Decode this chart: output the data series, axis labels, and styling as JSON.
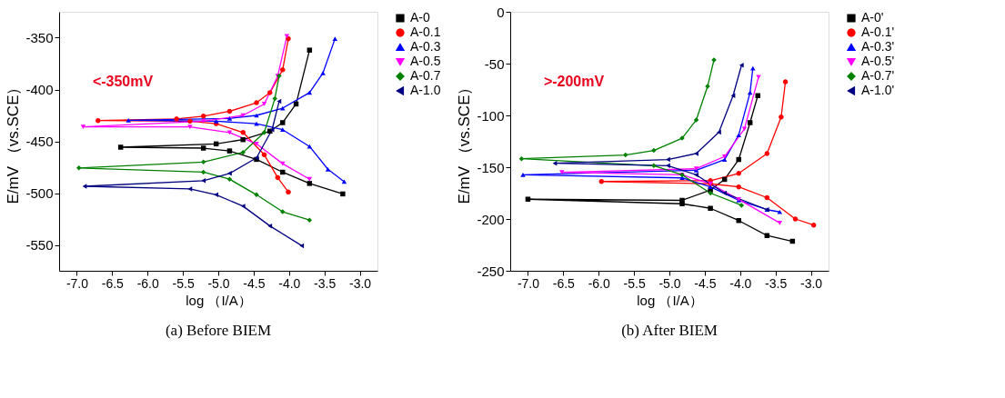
{
  "chart_data": [
    {
      "type": "line",
      "title": "(a) Before BIEM",
      "xlabel": "log （I/A）",
      "ylabel": "E/mV （vs.SCE）",
      "annotations": [
        "<-350mV"
      ],
      "xlim": [
        -7.25,
        -2.75
      ],
      "ylim": [
        -575,
        -325
      ],
      "xticks": [
        {
          "value": -7,
          "label": "-7.0"
        },
        {
          "value": -6.5,
          "label": "-6.5"
        },
        {
          "value": -6,
          "label": "-6.0"
        },
        {
          "value": -5.5,
          "label": "-5.5"
        },
        {
          "value": -5,
          "label": "-5.0"
        },
        {
          "value": -4.5,
          "label": "-4.5"
        },
        {
          "value": -4,
          "label": "-4.0"
        },
        {
          "value": -3.5,
          "label": "-3.5"
        },
        {
          "value": -3,
          "label": "-3.0"
        }
      ],
      "yticks": [
        -550,
        -500,
        -450,
        -400,
        -350
      ],
      "grid": false,
      "legend": "right",
      "line_style": "solid",
      "series": [
        {
          "name": "A-0",
          "color": "#000000",
          "marker": "square",
          "x": [
            -3.24,
            -3.71,
            -4.09,
            -4.46,
            -4.84,
            -5.21,
            -6.38,
            -5.03,
            -4.65,
            -4.27,
            -4.09,
            -3.9,
            -3.71
          ],
          "values": [
            -500.8,
            -490.7,
            -479.8,
            -467.5,
            -459.3,
            -456.6,
            -455.7,
            -452.5,
            -448.4,
            -440.2,
            -432,
            -414,
            -362
          ]
        },
        {
          "name": "A-0.1",
          "color": "#ff0000",
          "marker": "circle",
          "x": [
            -4.01,
            -4.16,
            -4.35,
            -4.65,
            -5.03,
            -5.4,
            -6.7,
            -5.59,
            -5.21,
            -4.84,
            -4.46,
            -4.27,
            -4.09,
            -4.01
          ],
          "values": [
            -499,
            -485,
            -463,
            -441.5,
            -433,
            -430.6,
            -430,
            -428.4,
            -425.7,
            -421,
            -412.8,
            -403,
            -381,
            -351
          ]
        },
        {
          "name": "A-0.3",
          "color": "#0000ff",
          "marker": "triangle",
          "x": [
            -3.22,
            -3.45,
            -3.71,
            -4.09,
            -4.46,
            -5.03,
            -6.27,
            -4.84,
            -4.46,
            -4.09,
            -3.71,
            -3.52,
            -3.35
          ],
          "values": [
            -489,
            -477,
            -455,
            -438.8,
            -433,
            -430.6,
            -429.8,
            -427.9,
            -425,
            -418,
            -403,
            -384,
            -351
          ]
        },
        {
          "name": "A-0.5",
          "color": "#ff00ff",
          "marker": "triangle-down",
          "x": [
            -3.71,
            -4.09,
            -4.46,
            -4.84,
            -5.4,
            -6.91,
            -5.21,
            -4.65,
            -4.35,
            -4.16,
            -4.03
          ],
          "values": [
            -486.6,
            -471.6,
            -452.5,
            -441.5,
            -436,
            -436,
            -430.6,
            -425,
            -414,
            -387,
            -348.6
          ]
        },
        {
          "name": "A-0.7",
          "color": "#008000",
          "marker": "diamond",
          "x": [
            -3.71,
            -4.09,
            -4.46,
            -4.84,
            -5.21,
            -6.97,
            -5.21,
            -4.65,
            -4.35,
            -4.2,
            -4.14
          ],
          "values": [
            -526,
            -518,
            -501.6,
            -486.6,
            -479.8,
            -475.7,
            -470,
            -460.7,
            -441.5,
            -408.7,
            -386.9
          ]
        },
        {
          "name": "A-1.0",
          "color": "#000080",
          "marker": "triangle-left",
          "x": [
            -3.82,
            -4.27,
            -4.65,
            -5.03,
            -5.4,
            -6.89,
            -5.21,
            -4.84,
            -4.46,
            -4.24,
            -4.14
          ],
          "values": [
            -550.8,
            -531.7,
            -512.6,
            -501.6,
            -496,
            -493.4,
            -488,
            -481,
            -466,
            -438.8,
            -411.5
          ]
        }
      ]
    },
    {
      "type": "line",
      "title": "(b) After BIEM",
      "xlabel": "log （I/A）",
      "ylabel": "E/mV （vs.SCE）",
      "annotations": [
        ">-200mV"
      ],
      "xlim": [
        -7.25,
        -2.75
      ],
      "ylim": [
        -250,
        0
      ],
      "xticks": [
        {
          "value": -7,
          "label": "-7.0"
        },
        {
          "value": -6.5,
          "label": "-6.5"
        },
        {
          "value": -6,
          "label": "-6.0"
        },
        {
          "value": -5.5,
          "label": "-5.5"
        },
        {
          "value": -5,
          "label": "-5.0"
        },
        {
          "value": -4.5,
          "label": "-4.5"
        },
        {
          "value": -4,
          "label": "-4.0"
        },
        {
          "value": -3.5,
          "label": "-3.5"
        },
        {
          "value": -3,
          "label": "-3.0"
        }
      ],
      "yticks": [
        -250,
        -200,
        -150,
        -100,
        -50,
        0
      ],
      "grid": false,
      "legend": "right",
      "line_style": "solid",
      "series": [
        {
          "name": "A-0'",
          "color": "#000000",
          "marker": "square",
          "x": [
            -3.26,
            -3.62,
            -4.02,
            -4.42,
            -4.82,
            -7.0,
            -4.82,
            -4.42,
            -4.22,
            -4.02,
            -3.86,
            -3.75
          ],
          "values": [
            -221.5,
            -216,
            -201.5,
            -189.7,
            -185.3,
            -180.9,
            -182,
            -172,
            -161.8,
            -142.6,
            -107,
            -80.9
          ]
        },
        {
          "name": "A-0.1'",
          "color": "#ff0000",
          "marker": "circle",
          "x": [
            -2.96,
            -3.22,
            -3.62,
            -4.02,
            -4.42,
            -5.96,
            -4.42,
            -4.02,
            -3.62,
            -3.42,
            -3.36
          ],
          "values": [
            -205.9,
            -200,
            -179.4,
            -169,
            -166,
            -163.8,
            -163,
            -156,
            -136.8,
            -101.5,
            -67.6
          ]
        },
        {
          "name": "A-0.3'",
          "color": "#0000ff",
          "marker": "triangle",
          "x": [
            -3.44,
            -3.62,
            -4.02,
            -4.42,
            -4.82,
            -7.07,
            -4.62,
            -4.22,
            -4.02,
            -3.86,
            -3.82
          ],
          "values": [
            -193.2,
            -191,
            -182,
            -169,
            -160.3,
            -157.4,
            -153,
            -142.6,
            -119,
            -78,
            -54.4
          ]
        },
        {
          "name": "A-0.5'",
          "color": "#ff00ff",
          "marker": "triangle-down",
          "x": [
            -3.44,
            -4.02,
            -4.42,
            -4.82,
            -6.52,
            -4.62,
            -4.22,
            -3.94,
            -3.74
          ],
          "values": [
            -203.8,
            -181,
            -166,
            -157.4,
            -155,
            -151.5,
            -139.7,
            -113,
            -63
          ]
        },
        {
          "name": "A-0.7'",
          "color": "#008000",
          "marker": "diamond",
          "x": [
            -3.98,
            -4.42,
            -4.82,
            -5.22,
            -7.09,
            -5.62,
            -5.22,
            -4.82,
            -4.62,
            -4.46,
            -4.37
          ],
          "values": [
            -186.8,
            -175,
            -157.4,
            -148.5,
            -141.8,
            -138.2,
            -133.8,
            -122,
            -104.4,
            -72,
            -46.5
          ]
        },
        {
          "name": "A-1.0'",
          "color": "#000080",
          "marker": "triangle-left",
          "x": [
            -3.62,
            -4.22,
            -4.62,
            -5.02,
            -6.62,
            -5.02,
            -4.62,
            -4.3,
            -4.1,
            -3.98
          ],
          "values": [
            -191,
            -175,
            -157.4,
            -148.5,
            -146.2,
            -142.6,
            -136.8,
            -116.2,
            -80.9,
            -51.5
          ]
        }
      ]
    }
  ]
}
